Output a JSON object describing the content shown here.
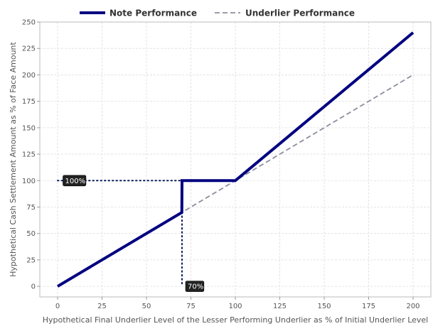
{
  "chart_data": {
    "type": "line",
    "xlabel": "Hypothetical Final Underlier Level of the Lesser Performing Underlier as % of Initial Underlier Level",
    "ylabel": "Hypothetical Cash Settlement Amount as % of Face Amount",
    "xlim": [
      -10,
      210
    ],
    "ylim": [
      -10,
      250
    ],
    "x_ticks": [
      0,
      25,
      50,
      75,
      100,
      125,
      150,
      175,
      200
    ],
    "y_ticks": [
      0,
      25,
      50,
      75,
      100,
      125,
      150,
      175,
      200,
      225,
      250
    ],
    "grid": true,
    "legend": "top",
    "series": [
      {
        "name": "Note Performance",
        "style": "solid",
        "color": "#000080",
        "points": [
          [
            0,
            0
          ],
          [
            69.9,
            69.9
          ],
          [
            70,
            100
          ],
          [
            100,
            100
          ],
          [
            200,
            240
          ]
        ]
      },
      {
        "name": "Underlier Performance",
        "style": "dashed",
        "color": "#8e8e9e",
        "points": [
          [
            0,
            0
          ],
          [
            200,
            200
          ]
        ]
      }
    ],
    "annotations": [
      {
        "text": "100%",
        "x": 3,
        "y": 100,
        "guide": "horizontal",
        "guide_from": [
          0,
          100
        ],
        "guide_to": [
          70,
          100
        ]
      },
      {
        "text": "70%",
        "x": 72,
        "y": 0,
        "guide": "vertical",
        "guide_from": [
          70,
          70
        ],
        "guide_to": [
          70,
          0
        ]
      }
    ]
  }
}
